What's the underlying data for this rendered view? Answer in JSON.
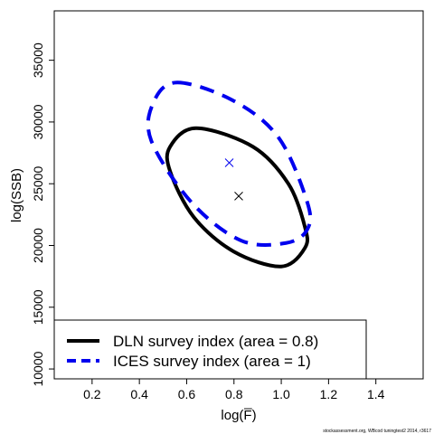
{
  "chart_data": {
    "type": "scatter",
    "xlabel": "log(F̅)",
    "ylabel": "log(SSB)",
    "xlim": [
      0.04,
      1.6
    ],
    "ylim": [
      9200,
      39000
    ],
    "xticks": [
      0.2,
      0.4,
      0.6,
      0.8,
      1.0,
      1.2,
      1.4
    ],
    "yticks": [
      10000,
      15000,
      20000,
      25000,
      30000,
      35000
    ],
    "grid": false,
    "legend_position": "bottom-left",
    "series": [
      {
        "name": "DLN survey index (area = 0.8)",
        "color": "#000000",
        "line_style": "solid",
        "center": {
          "x": 0.82,
          "y": 24000
        },
        "ellipse_points": [
          [
            0.64,
            29500
          ],
          [
            0.88,
            28000
          ],
          [
            1.03,
            25000
          ],
          [
            1.1,
            21500
          ],
          [
            1.1,
            19800
          ],
          [
            1.0,
            18300
          ],
          [
            0.8,
            19500
          ],
          [
            0.63,
            22300
          ],
          [
            0.53,
            26000
          ],
          [
            0.53,
            28000
          ]
        ]
      },
      {
        "name": "ICES survey index (area = 1)",
        "color": "#0000ee",
        "line_style": "dashed",
        "center": {
          "x": 0.78,
          "y": 26700
        },
        "ellipse_points": [
          [
            0.56,
            33200
          ],
          [
            0.8,
            31700
          ],
          [
            0.99,
            28700
          ],
          [
            1.11,
            23500
          ],
          [
            1.11,
            21300
          ],
          [
            1.02,
            20200
          ],
          [
            0.83,
            20400
          ],
          [
            0.62,
            23500
          ],
          [
            0.45,
            28500
          ],
          [
            0.46,
            31600
          ]
        ]
      }
    ]
  },
  "credit": "stockassessment.org, WBcod tuningtest2 2014, r3617"
}
